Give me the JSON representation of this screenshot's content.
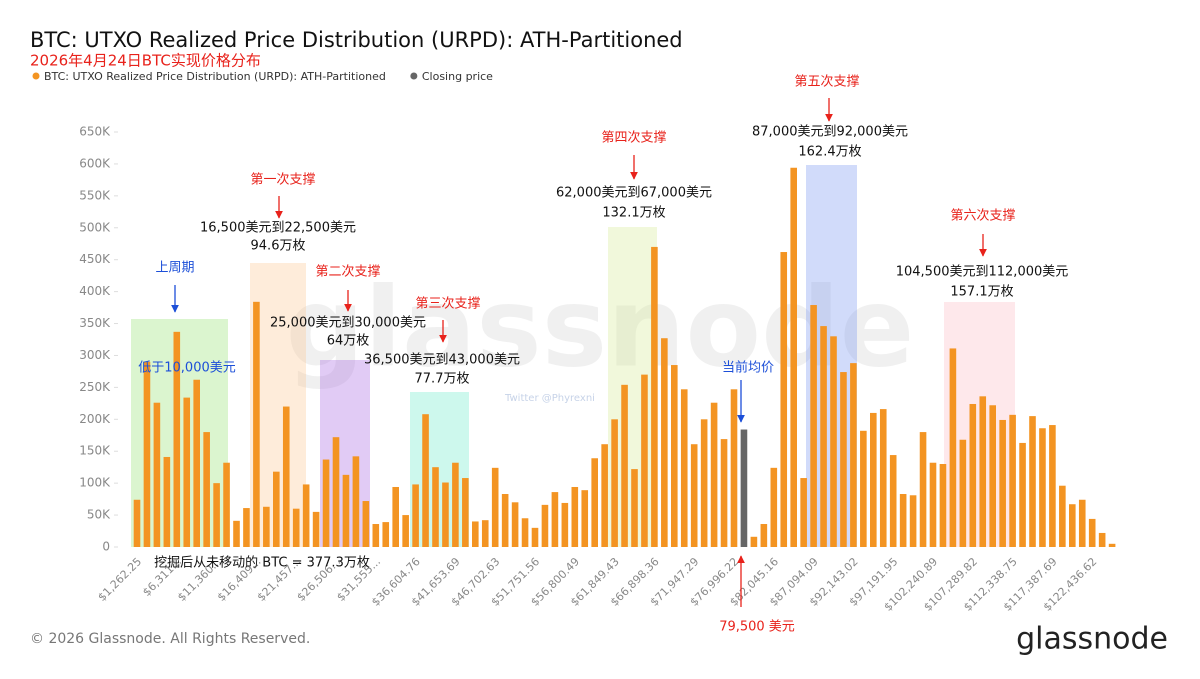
{
  "chart_data": {
    "type": "bar",
    "title": "BTC: UTXO Realized Price Distribution (URPD): ATH-Partitioned",
    "subtitle": "2026年4月24日BTC实现价格分布",
    "categories": [
      "$1,262.25",
      null,
      null,
      null,
      "$6,311...",
      null,
      null,
      null,
      "$11,360...",
      null,
      null,
      null,
      "$16,409...",
      null,
      null,
      null,
      "$21,457...",
      null,
      null,
      null,
      "$26,506...",
      null,
      null,
      null,
      "$31,555...",
      null,
      null,
      null,
      "$36,604.76",
      null,
      null,
      null,
      "$41,653.69",
      null,
      null,
      null,
      "$46,702.63",
      null,
      null,
      null,
      "$51,751.56",
      null,
      null,
      null,
      "$56,800.49",
      null,
      null,
      null,
      "$61,849.43",
      null,
      null,
      null,
      "$66,898.36",
      null,
      null,
      null,
      "$71,947.29",
      null,
      null,
      null,
      "$76,996.22",
      null,
      null,
      null,
      "$82,045.16",
      null,
      null,
      null,
      "$87,094.09",
      null,
      null,
      null,
      "$92,143.02",
      null,
      null,
      null,
      "$97,191.95",
      null,
      null,
      null,
      "$102,240.89",
      null,
      null,
      null,
      "$107,289.82",
      null,
      null,
      null,
      "$112,338.75",
      null,
      null,
      null,
      "$117,387.69",
      null,
      null,
      null,
      "$122,436.62",
      null,
      null
    ],
    "series": [
      {
        "name": "BTC: UTXO Realized Price Distribution (URPD): ATH-Partitioned",
        "color": "#f39422",
        "values": [
          74000,
          290000,
          226000,
          141000,
          337000,
          234000,
          262000,
          180000,
          100000,
          132000,
          41000,
          61000,
          384000,
          63000,
          118000,
          220000,
          60000,
          98000,
          55000,
          137000,
          172000,
          113000,
          142000,
          72000,
          36000,
          39000,
          94000,
          50000,
          98000,
          208000,
          125000,
          101000,
          132000,
          108000,
          40000,
          42000,
          124000,
          83000,
          70000,
          45000,
          30000,
          66000,
          86000,
          69000,
          94000,
          89000,
          139000,
          161000,
          200000,
          254000,
          122000,
          270000,
          470000,
          327000,
          285000,
          247000,
          161000,
          200000,
          226000,
          169000,
          247000,
          null,
          16000,
          36000,
          124000,
          462000,
          594000,
          108000,
          379000,
          346000,
          330000,
          274000,
          288000,
          182000,
          210000,
          216000,
          144000,
          83000,
          81000,
          180000,
          132000,
          130000,
          311000,
          168000,
          224000,
          236000,
          222000,
          199000,
          207000,
          163000,
          205000,
          186000,
          191000,
          96000,
          67000,
          74000,
          44000,
          22000,
          5000
        ]
      },
      {
        "name": "Closing price",
        "color": "#666666",
        "values": [
          null,
          null,
          null,
          null,
          null,
          null,
          null,
          null,
          null,
          null,
          null,
          null,
          null,
          null,
          null,
          null,
          null,
          null,
          null,
          null,
          null,
          null,
          null,
          null,
          null,
          null,
          null,
          null,
          null,
          null,
          null,
          null,
          null,
          null,
          null,
          null,
          null,
          null,
          null,
          null,
          null,
          null,
          null,
          null,
          null,
          null,
          null,
          null,
          null,
          null,
          null,
          null,
          null,
          null,
          null,
          null,
          null,
          null,
          null,
          null,
          null,
          184000,
          null,
          null,
          null,
          null,
          null,
          null,
          null,
          null,
          null,
          null,
          null,
          null,
          null,
          null,
          null,
          null,
          null,
          null,
          null,
          null,
          null,
          null,
          null,
          null,
          null,
          null,
          null,
          null,
          null,
          null,
          null,
          null,
          null,
          null,
          null,
          null,
          null
        ]
      }
    ],
    "ylim": [
      0,
      650000
    ],
    "yticks": [
      {
        "value": 0,
        "label": "0"
      },
      {
        "value": 50000,
        "label": "50K"
      },
      {
        "value": 100000,
        "label": "100K"
      },
      {
        "value": 150000,
        "label": "150K"
      },
      {
        "value": 200000,
        "label": "200K"
      },
      {
        "value": 250000,
        "label": "250K"
      },
      {
        "value": 300000,
        "label": "300K"
      },
      {
        "value": 350000,
        "label": "350K"
      },
      {
        "value": 400000,
        "label": "400K"
      },
      {
        "value": 450000,
        "label": "450K"
      },
      {
        "value": 500000,
        "label": "500K"
      },
      {
        "value": 550000,
        "label": "550K"
      },
      {
        "value": 600000,
        "label": "600K"
      },
      {
        "value": 650000,
        "label": "650K"
      }
    ],
    "grid": false,
    "legend": "top-left",
    "annotations": [
      "上周期",
      "低于10,000美元",
      "第一次支撑",
      "16,500美元到22,500美元",
      "94.6万枚",
      "第二次支撑",
      "25,000美元到30,000美元",
      "64万枚",
      "第三次支撑",
      "36,500美元到43,000美元",
      "77.7万枚",
      "第四次支撑",
      "62,000美元到67,000美元",
      "132.1万枚",
      "第五次支撑",
      "87,000美元到92,000美元",
      "162.4万枚",
      "第六次支撑",
      "104,500美元到112,000美元",
      "157.1万枚",
      "当前均价",
      "挖掘后从未移动的 BTC = 377.3万枚",
      "79,500 美元"
    ],
    "watermark": "glassnode",
    "credit": "Twitter @Phyrexni"
  },
  "footer": {
    "copyright": "© 2026 Glassnode. All Rights Reserved.",
    "logo": "glassnode"
  }
}
